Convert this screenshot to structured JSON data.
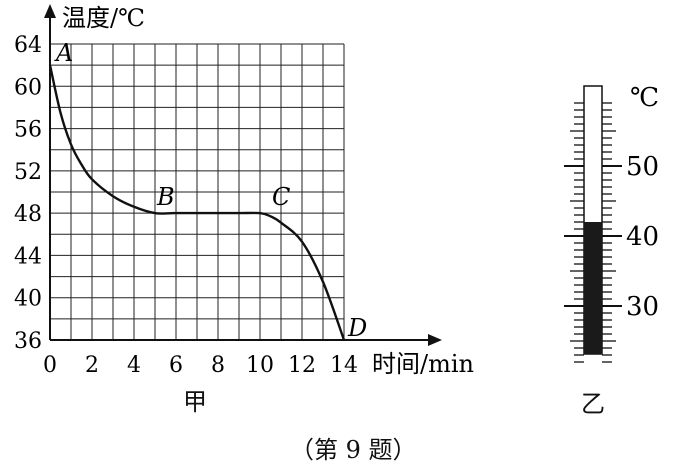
{
  "chart_data": {
    "type": "line",
    "ylabel": "温度/℃",
    "xlabel": "时间/min",
    "x_ticks": [
      0,
      2,
      4,
      6,
      8,
      10,
      12,
      14
    ],
    "y_ticks": [
      36,
      40,
      44,
      48,
      52,
      56,
      60,
      64
    ],
    "xlim": [
      0,
      14
    ],
    "ylim": [
      36,
      64
    ],
    "grid": true,
    "series": [
      {
        "x": [
          0,
          0.5,
          1,
          1.5,
          2,
          3,
          4,
          5,
          6,
          7,
          8,
          9,
          10,
          10.5,
          11,
          12,
          13,
          14
        ],
        "y": [
          62,
          57.5,
          54.5,
          52.6,
          51.2,
          49.6,
          48.6,
          48,
          48,
          48,
          48,
          48,
          48,
          47.7,
          47.1,
          45.3,
          41.5,
          36
        ]
      }
    ],
    "annotations": [
      {
        "text": "A",
        "x": 0,
        "y": 62
      },
      {
        "text": "B",
        "x": 5,
        "y": 48
      },
      {
        "text": "C",
        "x": 10,
        "y": 48
      },
      {
        "text": "D",
        "x": 14,
        "y": 36
      }
    ],
    "caption": "甲"
  },
  "thermometer": {
    "unit": "℃",
    "scale_labels": [
      "50",
      "40",
      "30"
    ],
    "reading": 42,
    "caption": "乙"
  },
  "figure_caption": "（第 9 题）"
}
